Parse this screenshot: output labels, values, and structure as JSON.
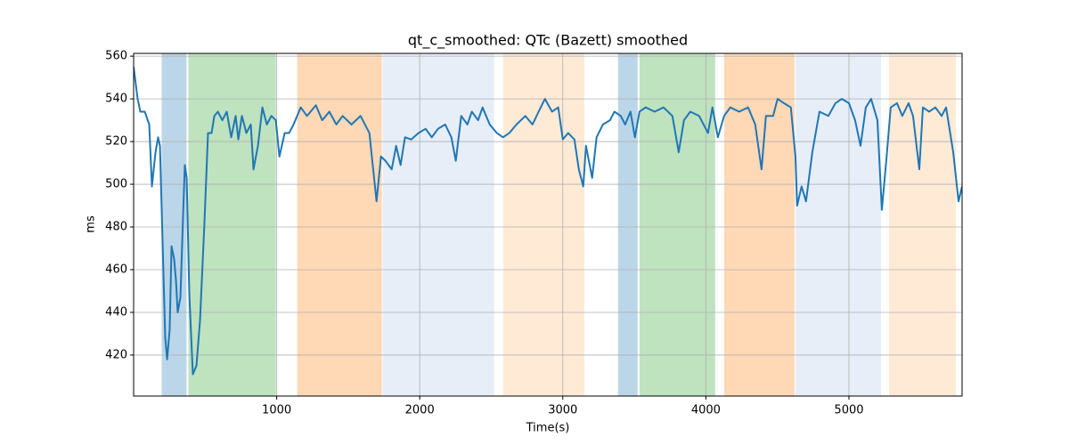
{
  "chart_data": {
    "type": "line",
    "title": "qt_c_smoothed: QTc (Bazett) smoothed",
    "x_label": "Time(s)",
    "y_label": "ms",
    "xlim": [
      0,
      5791
    ],
    "ylim": [
      400.8,
      561.3
    ],
    "xticks": [
      1000,
      2000,
      3000,
      4000,
      5000
    ],
    "yticks": [
      420,
      440,
      460,
      480,
      500,
      520,
      540,
      560
    ],
    "grid": true,
    "spans": [
      {
        "start": 196,
        "end": 370,
        "color": "#1f77b4"
      },
      {
        "start": 383,
        "end": 994,
        "color": "#2ca02c"
      },
      {
        "start": 1143,
        "end": 1735,
        "color": "#ff7f0e"
      },
      {
        "start": 1741,
        "end": 2520,
        "color": "#aec7e8"
      },
      {
        "start": 2583,
        "end": 3150,
        "color": "#ffbb78"
      },
      {
        "start": 3386,
        "end": 3523,
        "color": "#1f77b4"
      },
      {
        "start": 3536,
        "end": 4065,
        "color": "#2ca02c"
      },
      {
        "start": 4128,
        "end": 4620,
        "color": "#ff7f0e"
      },
      {
        "start": 4626,
        "end": 5224,
        "color": "#aec7e8"
      },
      {
        "start": 5280,
        "end": 5748,
        "color": "#ffbb78"
      }
    ],
    "x": [
      0,
      28,
      47,
      78,
      109,
      128,
      153,
      171,
      184,
      202,
      221,
      234,
      252,
      265,
      283,
      296,
      308,
      327,
      346,
      358,
      371,
      389,
      414,
      439,
      464,
      495,
      520,
      545,
      564,
      589,
      620,
      651,
      682,
      713,
      732,
      757,
      788,
      819,
      838,
      869,
      900,
      931,
      963,
      994,
      1019,
      1056,
      1087,
      1118,
      1168,
      1212,
      1274,
      1318,
      1368,
      1417,
      1461,
      1523,
      1586,
      1648,
      1698,
      1729,
      1760,
      1804,
      1835,
      1866,
      1897,
      1941,
      1991,
      2041,
      2084,
      2128,
      2178,
      2221,
      2252,
      2290,
      2333,
      2364,
      2408,
      2439,
      2489,
      2539,
      2582,
      2626,
      2676,
      2738,
      2788,
      2831,
      2875,
      2925,
      2968,
      3000,
      3037,
      3081,
      3112,
      3143,
      3162,
      3205,
      3236,
      3280,
      3330,
      3361,
      3405,
      3436,
      3473,
      3504,
      3536,
      3579,
      3642,
      3704,
      3766,
      3810,
      3847,
      3891,
      3953,
      4015,
      4046,
      4084,
      4127,
      4171,
      4233,
      4295,
      4345,
      4389,
      4420,
      4470,
      4501,
      4545,
      4594,
      4626,
      4638,
      4669,
      4700,
      4744,
      4794,
      4856,
      4906,
      4950,
      5000,
      5043,
      5081,
      5118,
      5155,
      5199,
      5230,
      5261,
      5292,
      5336,
      5373,
      5417,
      5448,
      5492,
      5517,
      5561,
      5604,
      5648,
      5679,
      5729,
      5766,
      5791
    ],
    "series": [
      {
        "name": "qt_c_smoothed",
        "color": "#1f77b4",
        "values": [
          555,
          540,
          534,
          534,
          528,
          499,
          515,
          522,
          518,
          474,
          428,
          418,
          432,
          471,
          465,
          455,
          440,
          447,
          486,
          509,
          503,
          449,
          411,
          415,
          436,
          482,
          524,
          524,
          532,
          534,
          530,
          534,
          522,
          532,
          521,
          532,
          524,
          528,
          507,
          518,
          536,
          528,
          532,
          530,
          513,
          524,
          524,
          528,
          536,
          532,
          537,
          530,
          534,
          528,
          532,
          528,
          532,
          524,
          492,
          513,
          511,
          507,
          518,
          509,
          522,
          521,
          524,
          526,
          522,
          526,
          528,
          522,
          511,
          532,
          528,
          534,
          530,
          536,
          528,
          524,
          522,
          524,
          528,
          532,
          528,
          534,
          540,
          534,
          536,
          521,
          524,
          521,
          507,
          499,
          518,
          503,
          522,
          528,
          530,
          534,
          532,
          528,
          534,
          522,
          534,
          536,
          534,
          536,
          532,
          515,
          530,
          534,
          532,
          524,
          536,
          522,
          532,
          536,
          534,
          536,
          528,
          507,
          532,
          532,
          540,
          538,
          536,
          513,
          490,
          499,
          492,
          515,
          534,
          532,
          538,
          540,
          538,
          530,
          518,
          536,
          540,
          530,
          488,
          511,
          536,
          538,
          532,
          538,
          532,
          507,
          536,
          534,
          536,
          532,
          536,
          515,
          492,
          499
        ]
      }
    ]
  }
}
